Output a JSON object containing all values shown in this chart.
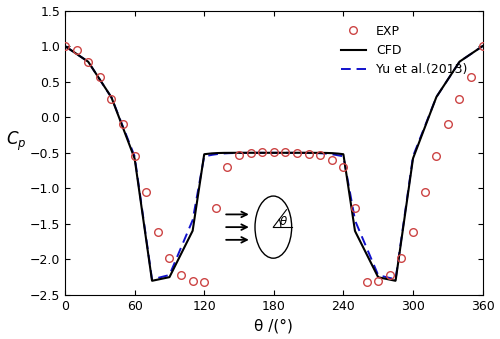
{
  "title": "",
  "xlabel": "θ /(°)",
  "ylabel": "$C_p$",
  "xlim": [
    0,
    360
  ],
  "ylim": [
    -2.5,
    1.5
  ],
  "xticks": [
    0,
    60,
    120,
    180,
    240,
    300,
    360
  ],
  "yticks": [
    -2.5,
    -2.0,
    -1.5,
    -1.0,
    -0.5,
    0.0,
    0.5,
    1.0,
    1.5
  ],
  "exp_color": "#cc4444",
  "cfd_color": "#000000",
  "yu_color": "#1111cc",
  "background_color": "#ffffff",
  "exp_theta": [
    0,
    10,
    20,
    30,
    40,
    50,
    60,
    70,
    80,
    90,
    100,
    110,
    120,
    130,
    140,
    150,
    160,
    170,
    180,
    190,
    200,
    210,
    220,
    230,
    240,
    250,
    260,
    270,
    280,
    290,
    300,
    310,
    320,
    330,
    340,
    350,
    360
  ],
  "exp_cp": [
    1.0,
    0.94,
    0.78,
    0.56,
    0.26,
    -0.1,
    -0.55,
    -1.05,
    -1.62,
    -1.98,
    -2.22,
    -2.3,
    -2.32,
    -1.28,
    -0.7,
    -0.53,
    -0.5,
    -0.49,
    -0.49,
    -0.49,
    -0.5,
    -0.51,
    -0.53,
    -0.6,
    -0.7,
    -1.28,
    -2.32,
    -2.3,
    -2.22,
    -1.98,
    -1.62,
    -1.05,
    -0.55,
    -0.1,
    0.26,
    0.56,
    1.0
  ]
}
